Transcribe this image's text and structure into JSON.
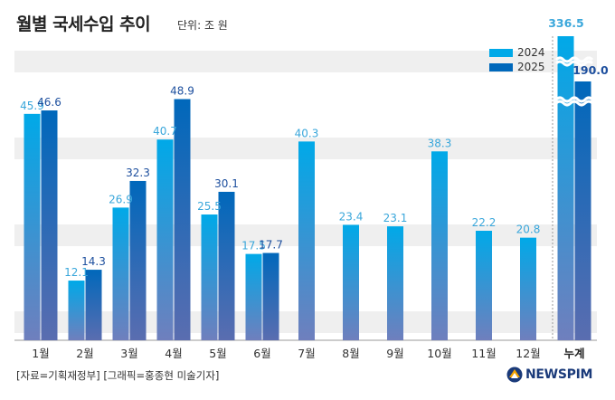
{
  "header": {
    "title": "월별 국세수입 추이",
    "unit": "단위: 조 원"
  },
  "footer": {
    "source": "[자료=기획재정부] [그래픽=홍종현 미술기자]",
    "logo": "NEWSPIM"
  },
  "colors": {
    "s2024_top": "#00a9e8",
    "s2024_bottom": "#6f7fbd",
    "s2025_top": "#0068bb",
    "s2025_bottom": "#5a6db0",
    "label2024": "#3aa7db",
    "label2025": "#1d4f9e",
    "band": "#efefef"
  },
  "chart_data": {
    "type": "bar",
    "categories": [
      "1월",
      "2월",
      "3월",
      "4월",
      "5월",
      "6월",
      "7월",
      "8월",
      "9월",
      "10월",
      "11월",
      "12월"
    ],
    "series": [
      {
        "name": "2024",
        "values": [
          45.9,
          12.1,
          26.9,
          40.7,
          25.5,
          17.5,
          40.3,
          23.4,
          23.1,
          38.3,
          22.2,
          20.8
        ]
      },
      {
        "name": "2025",
        "values": [
          46.6,
          14.3,
          32.3,
          48.9,
          30.1,
          17.7,
          null,
          null,
          null,
          null,
          null,
          null
        ]
      }
    ],
    "cumulative": {
      "category": "누계",
      "values": [
        336.5,
        190.0
      ],
      "labels": [
        "336.5",
        "190.0"
      ],
      "broken_axis": true
    },
    "ylim": [
      0,
      56
    ],
    "legend": {
      "position": "top-right"
    },
    "grid": "alternating-bands"
  }
}
